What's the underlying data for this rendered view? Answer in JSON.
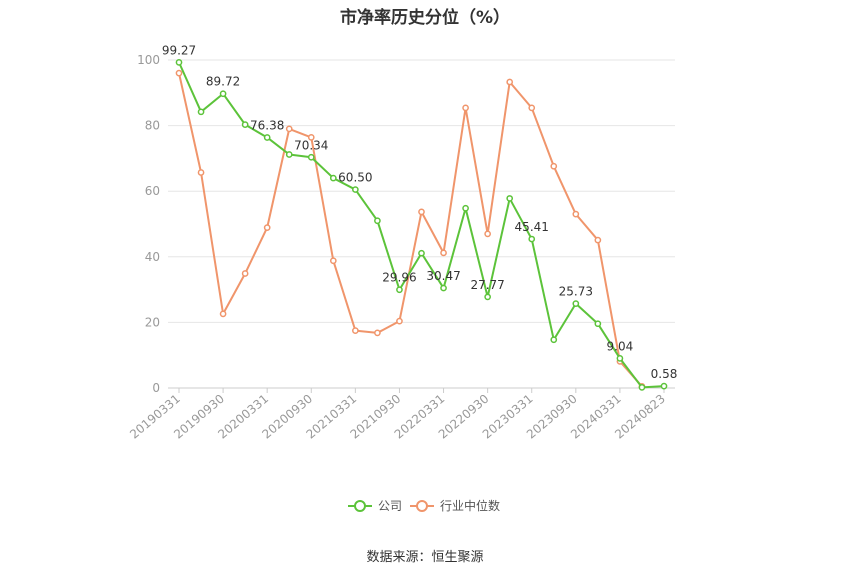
{
  "title": "市净率历史分位（%）",
  "source": "数据来源：恒生聚源",
  "colors": {
    "company": "#5cc33a",
    "industry": "#f0956b",
    "grid": "#e6e6e6",
    "axis": "#cccccc"
  },
  "chart_data": {
    "type": "line",
    "title": "市净率历史分位（%）",
    "ylim": [
      0,
      100
    ],
    "yticks": [
      0,
      20,
      40,
      60,
      80,
      100
    ],
    "grid": true,
    "legend_position": "bottom",
    "x_tick_labels": [
      "20190331",
      "20190930",
      "20200331",
      "20200930",
      "20210331",
      "20210930",
      "20220331",
      "20220930",
      "20230331",
      "20230930",
      "20240331",
      "20240823"
    ],
    "x_tick_index": [
      0,
      2,
      4,
      6,
      8,
      10,
      12,
      14,
      16,
      18,
      20,
      22
    ],
    "x": [
      "20190331",
      "20190630",
      "20190930",
      "20191231",
      "20200331",
      "20200630",
      "20200930",
      "20201231",
      "20210331",
      "20210630",
      "20210930",
      "20211231",
      "20220331",
      "20220630",
      "20220930",
      "20221231",
      "20230331",
      "20230630",
      "20230930",
      "20231231",
      "20240331",
      "20240630",
      "20240823"
    ],
    "series": [
      {
        "name": "公司",
        "values": [
          99.27,
          84.2,
          89.72,
          80.3,
          76.38,
          71.2,
          70.34,
          64.0,
          60.5,
          51.0,
          29.96,
          41.1,
          30.47,
          54.8,
          27.77,
          57.8,
          45.41,
          14.7,
          25.73,
          19.6,
          9.04,
          0.2,
          0.58
        ],
        "labels": {
          "0": "99.27",
          "2": "89.72",
          "4": "76.38",
          "6": "70.34",
          "8": "60.50",
          "10": "29.96",
          "12": "30.47",
          "14": "27.77",
          "16": "45.41",
          "18": "25.73",
          "20": "9.04",
          "22": "0.58"
        }
      },
      {
        "name": "行业中位数",
        "values": [
          96.0,
          65.7,
          22.6,
          34.9,
          48.9,
          79.0,
          76.4,
          38.8,
          17.5,
          16.8,
          20.4,
          53.7,
          41.2,
          85.4,
          47.0,
          93.3,
          85.4,
          67.6,
          53.0,
          45.1,
          8.1,
          0.5,
          null
        ]
      }
    ]
  }
}
